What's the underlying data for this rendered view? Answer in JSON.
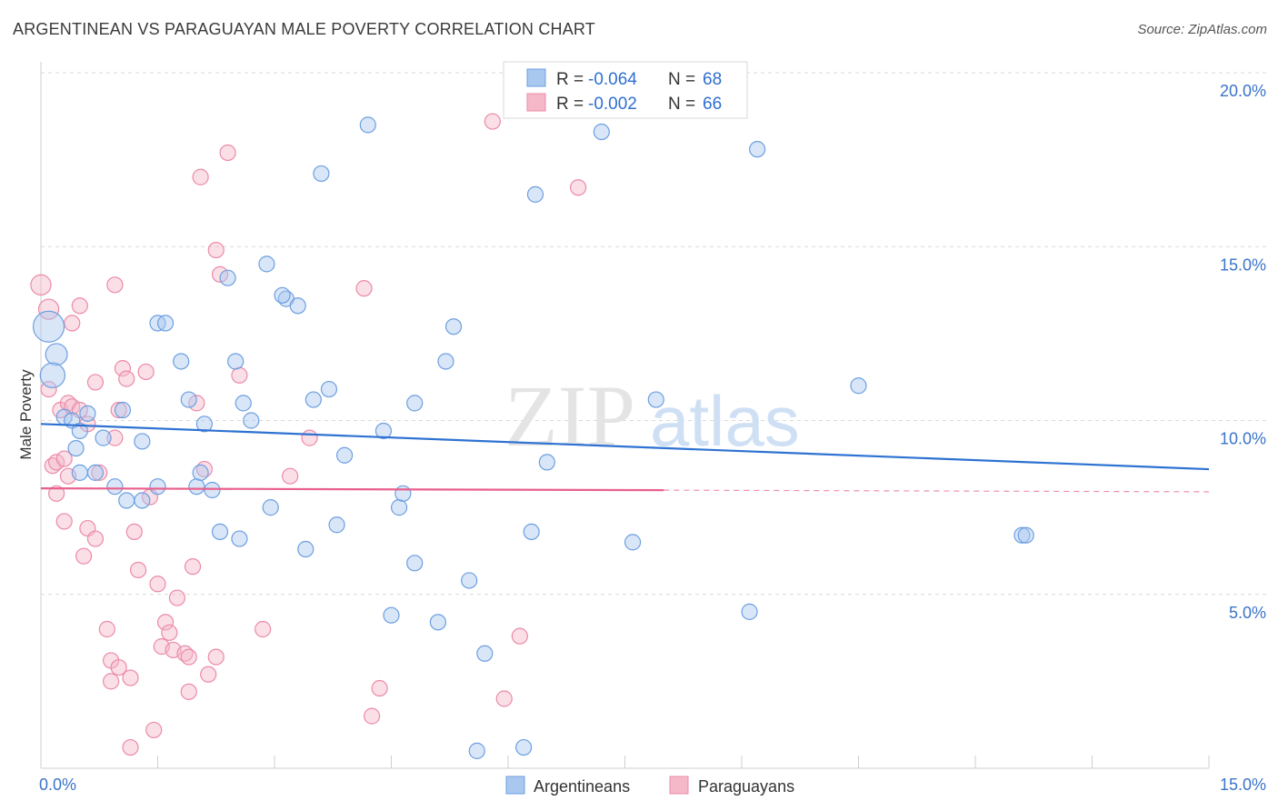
{
  "header": {
    "title": "ARGENTINEAN VS PARAGUAYAN MALE POVERTY CORRELATION CHART",
    "source": "Source: ZipAtlas.com"
  },
  "watermark": {
    "zip": "ZIP",
    "atlas": "atlas"
  },
  "legend": {
    "r_label": "R =",
    "n_label": "N =",
    "rows": [
      {
        "series": "Argentineans",
        "r": "-0.064",
        "n": "68"
      },
      {
        "series": "Paraguayans",
        "r": "-0.002",
        "n": "66"
      }
    ]
  },
  "colors": {
    "blue_fill": "#a9c8ef",
    "blue_stroke": "#6d9fe0",
    "blue_line": "#2e72d2",
    "pink_fill": "#f5b8c9",
    "pink_stroke": "#ec8aa8",
    "pink_line": "#e8608c",
    "grid": "#d9d9d9",
    "tick_text": "#3a74c9"
  },
  "chart_data": {
    "type": "scatter",
    "title": "ARGENTINEAN VS PARAGUAYAN MALE POVERTY CORRELATION CHART",
    "xlabel": "",
    "ylabel": "Male Poverty",
    "xlim": [
      0,
      15
    ],
    "ylim": [
      0,
      20
    ],
    "x_tick_labels": [
      "0.0%",
      "15.0%"
    ],
    "y_ticks": [
      5,
      10,
      15,
      20
    ],
    "y_tick_labels": [
      "5.0%",
      "10.0%",
      "15.0%",
      "20.0%"
    ],
    "grid": true,
    "legend_position": "top-center",
    "series": [
      {
        "name": "Argentineans",
        "color": "#6d9fe0",
        "trend": {
          "x": [
            0,
            15
          ],
          "y": [
            9.9,
            8.6
          ]
        },
        "points": [
          [
            0.1,
            12.7,
            2.0
          ],
          [
            0.2,
            11.9,
            1.4
          ],
          [
            0.15,
            11.3,
            1.6
          ],
          [
            0.3,
            10.1,
            1
          ],
          [
            0.4,
            10.0,
            1
          ],
          [
            0.6,
            10.2,
            1
          ],
          [
            0.5,
            9.7,
            1
          ],
          [
            0.8,
            9.5,
            1
          ],
          [
            0.45,
            9.2,
            1
          ],
          [
            0.5,
            8.5,
            1
          ],
          [
            0.7,
            8.5,
            1
          ],
          [
            0.95,
            8.1,
            1
          ],
          [
            1.1,
            7.7,
            1
          ],
          [
            1.3,
            7.7,
            1
          ],
          [
            1.5,
            8.1,
            1
          ],
          [
            1.05,
            10.3,
            1
          ],
          [
            1.3,
            9.4,
            1
          ],
          [
            1.5,
            12.8,
            1
          ],
          [
            1.6,
            12.8,
            1
          ],
          [
            1.8,
            11.7,
            1
          ],
          [
            1.9,
            10.6,
            1
          ],
          [
            2.0,
            8.1,
            1
          ],
          [
            2.05,
            8.5,
            1
          ],
          [
            2.1,
            9.9,
            1
          ],
          [
            2.2,
            8.0,
            1
          ],
          [
            2.3,
            6.8,
            1
          ],
          [
            2.4,
            14.1,
            1
          ],
          [
            2.5,
            11.7,
            1
          ],
          [
            2.6,
            10.5,
            1
          ],
          [
            2.7,
            10.0,
            1
          ],
          [
            2.9,
            14.5,
            1
          ],
          [
            2.95,
            7.5,
            1
          ],
          [
            3.15,
            13.5,
            1
          ],
          [
            3.3,
            13.3,
            1
          ],
          [
            3.1,
            13.6,
            1
          ],
          [
            3.4,
            6.3,
            1
          ],
          [
            3.5,
            10.6,
            1
          ],
          [
            3.6,
            17.1,
            1
          ],
          [
            3.7,
            10.9,
            1
          ],
          [
            3.8,
            7.0,
            1
          ],
          [
            3.9,
            9.0,
            1
          ],
          [
            4.2,
            18.5,
            1
          ],
          [
            4.4,
            9.7,
            1
          ],
          [
            4.5,
            4.4,
            1
          ],
          [
            4.6,
            7.5,
            1
          ],
          [
            4.65,
            7.9,
            1
          ],
          [
            4.8,
            5.9,
            1
          ],
          [
            4.8,
            10.5,
            1
          ],
          [
            5.1,
            4.2,
            1
          ],
          [
            5.2,
            11.7,
            1
          ],
          [
            5.3,
            12.7,
            1
          ],
          [
            5.5,
            5.4,
            1
          ],
          [
            5.7,
            3.3,
            1
          ],
          [
            5.6,
            0.5,
            1
          ],
          [
            6.2,
            0.6,
            1
          ],
          [
            6.3,
            6.8,
            1
          ],
          [
            6.35,
            16.5,
            1
          ],
          [
            6.5,
            8.8,
            1
          ],
          [
            7.2,
            18.3,
            1
          ],
          [
            7.0,
            19.6,
            1
          ],
          [
            7.6,
            6.5,
            1
          ],
          [
            7.9,
            10.6,
            1
          ],
          [
            9.1,
            4.5,
            1
          ],
          [
            9.2,
            17.8,
            1
          ],
          [
            10.5,
            11.0,
            1
          ],
          [
            12.6,
            6.7,
            1
          ],
          [
            12.65,
            6.7,
            1
          ],
          [
            2.55,
            6.6,
            1
          ]
        ]
      },
      {
        "name": "Paraguayans",
        "color": "#ec8aa8",
        "trend": {
          "x": [
            0,
            15
          ],
          "y": [
            8.05,
            7.95
          ],
          "solid_until": 8.0
        },
        "points": [
          [
            0.0,
            13.9,
            1.3
          ],
          [
            0.1,
            13.2,
            1.3
          ],
          [
            0.1,
            10.9,
            1
          ],
          [
            0.15,
            8.7,
            1
          ],
          [
            0.2,
            7.9,
            1
          ],
          [
            0.2,
            8.8,
            1
          ],
          [
            0.25,
            10.3,
            1
          ],
          [
            0.3,
            8.9,
            1
          ],
          [
            0.3,
            7.1,
            1
          ],
          [
            0.35,
            10.5,
            1
          ],
          [
            0.4,
            10.4,
            1
          ],
          [
            0.4,
            12.8,
            1
          ],
          [
            0.5,
            10.3,
            1
          ],
          [
            0.5,
            13.3,
            1
          ],
          [
            0.55,
            6.1,
            1
          ],
          [
            0.6,
            6.9,
            1
          ],
          [
            0.6,
            9.9,
            1
          ],
          [
            0.7,
            6.6,
            1
          ],
          [
            0.7,
            11.1,
            1
          ],
          [
            0.75,
            8.5,
            1
          ],
          [
            0.85,
            4.0,
            1
          ],
          [
            0.9,
            2.5,
            1
          ],
          [
            0.9,
            3.1,
            1
          ],
          [
            0.95,
            13.9,
            1
          ],
          [
            0.95,
            9.5,
            1
          ],
          [
            1.0,
            2.9,
            1
          ],
          [
            1.0,
            10.3,
            1
          ],
          [
            1.05,
            11.5,
            1
          ],
          [
            1.1,
            11.2,
            1
          ],
          [
            1.15,
            0.6,
            1
          ],
          [
            1.15,
            2.6,
            1
          ],
          [
            1.2,
            6.8,
            1
          ],
          [
            1.25,
            5.7,
            1
          ],
          [
            1.35,
            11.4,
            1
          ],
          [
            1.45,
            1.1,
            1
          ],
          [
            1.5,
            5.3,
            1
          ],
          [
            1.55,
            3.5,
            1
          ],
          [
            1.6,
            4.2,
            1
          ],
          [
            1.65,
            3.9,
            1
          ],
          [
            1.7,
            3.4,
            1
          ],
          [
            1.75,
            4.9,
            1
          ],
          [
            1.85,
            3.3,
            1
          ],
          [
            1.9,
            3.2,
            1
          ],
          [
            1.9,
            2.2,
            1
          ],
          [
            1.95,
            5.8,
            1
          ],
          [
            2.0,
            10.5,
            1
          ],
          [
            2.05,
            17.0,
            1
          ],
          [
            2.1,
            8.6,
            1
          ],
          [
            2.15,
            2.7,
            1
          ],
          [
            2.25,
            3.2,
            1
          ],
          [
            2.25,
            14.9,
            1
          ],
          [
            2.3,
            14.2,
            1
          ],
          [
            2.4,
            17.7,
            1
          ],
          [
            2.55,
            11.3,
            1
          ],
          [
            2.85,
            4.0,
            1
          ],
          [
            3.2,
            8.4,
            1
          ],
          [
            3.45,
            9.5,
            1
          ],
          [
            4.15,
            13.8,
            1
          ],
          [
            4.25,
            1.5,
            1
          ],
          [
            4.35,
            2.3,
            1
          ],
          [
            5.8,
            18.6,
            1
          ],
          [
            5.95,
            2.0,
            1
          ],
          [
            6.15,
            3.8,
            1
          ],
          [
            6.9,
            16.7,
            1
          ],
          [
            0.35,
            8.4,
            1
          ],
          [
            1.4,
            7.8,
            1
          ]
        ]
      }
    ]
  }
}
